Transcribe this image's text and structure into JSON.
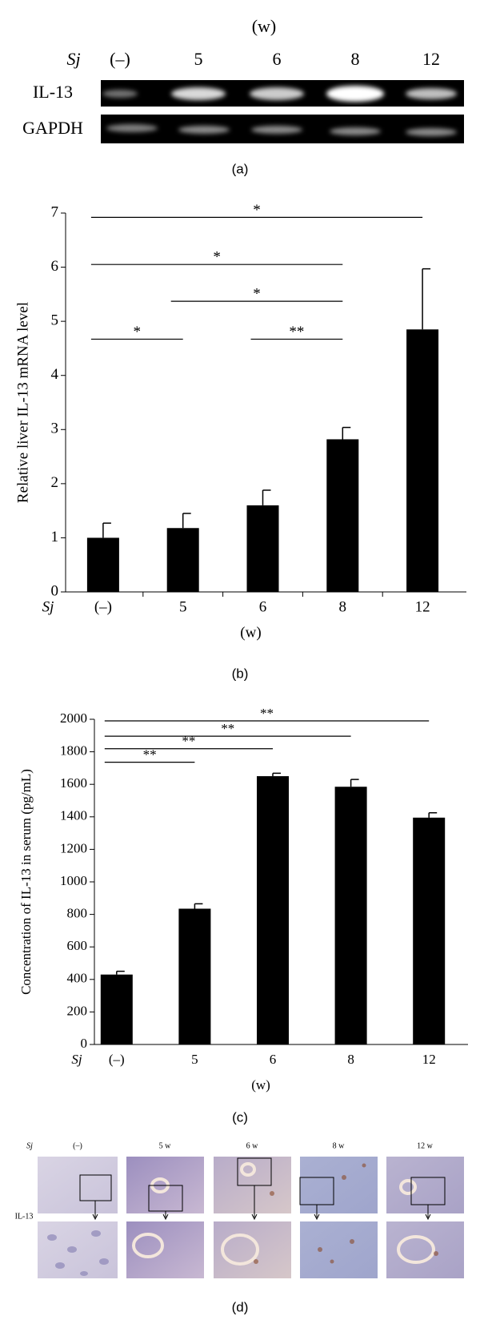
{
  "panel_a": {
    "unit_label": "(w)",
    "group_label": "Sj",
    "lanes": [
      "(–)",
      "5",
      "6",
      "8",
      "12"
    ],
    "rows": [
      "IL-13",
      "GAPDH"
    ],
    "caption": "(a)"
  },
  "chart_data": [
    {
      "type": "bar",
      "ylabel": "Relative liver IL-13 mRNA level",
      "group_label": "Sj",
      "xlabel": "(w)",
      "categories": [
        "(–)",
        "5",
        "6",
        "8",
        "12"
      ],
      "values": [
        1.0,
        1.18,
        1.6,
        2.82,
        4.85
      ],
      "errors": [
        0.27,
        0.27,
        0.28,
        0.22,
        1.12
      ],
      "color": "#000000",
      "ylim": [
        0,
        7
      ],
      "yticks": [
        0,
        1,
        2,
        3,
        4,
        5,
        6,
        7
      ],
      "annotations": [
        {
          "text": "*",
          "y": 6.92,
          "from": 0,
          "to": 4
        },
        {
          "text": "*",
          "y": 6.05,
          "from": 0,
          "to": 3
        },
        {
          "text": "*",
          "y": 5.37,
          "from": 1,
          "to": 3
        },
        {
          "text": "*",
          "y": 4.67,
          "from": 0,
          "to": 1
        },
        {
          "text": "**",
          "y": 4.67,
          "from": 2,
          "to": 3
        }
      ],
      "caption": "(b)"
    },
    {
      "type": "bar",
      "ylabel": "Concentration of IL-13 in serum (pg/mL)",
      "group_label": "Sj",
      "xlabel": "(w)",
      "categories": [
        "(–)",
        "5",
        "6",
        "8",
        "12"
      ],
      "values": [
        430,
        835,
        1650,
        1585,
        1395
      ],
      "errors": [
        20,
        30,
        18,
        45,
        30
      ],
      "color": "#000000",
      "ylim": [
        0,
        2000
      ],
      "yticks": [
        0,
        200,
        400,
        600,
        800,
        1000,
        1200,
        1400,
        1600,
        1800,
        2000
      ],
      "annotations": [
        {
          "text": "**",
          "y": 1990,
          "from": 0,
          "to": 4
        },
        {
          "text": "**",
          "y": 1896,
          "from": 0,
          "to": 3
        },
        {
          "text": "**",
          "y": 1819,
          "from": 0,
          "to": 2
        },
        {
          "text": "**",
          "y": 1736,
          "from": 0,
          "to": 1
        }
      ],
      "caption": "(c)"
    }
  ],
  "panel_d": {
    "group_label": "Sj",
    "columns": [
      "(–)",
      "5 w",
      "6 w",
      "8 w",
      "12 w"
    ],
    "row_label": "IL-13",
    "caption": "(d)"
  }
}
